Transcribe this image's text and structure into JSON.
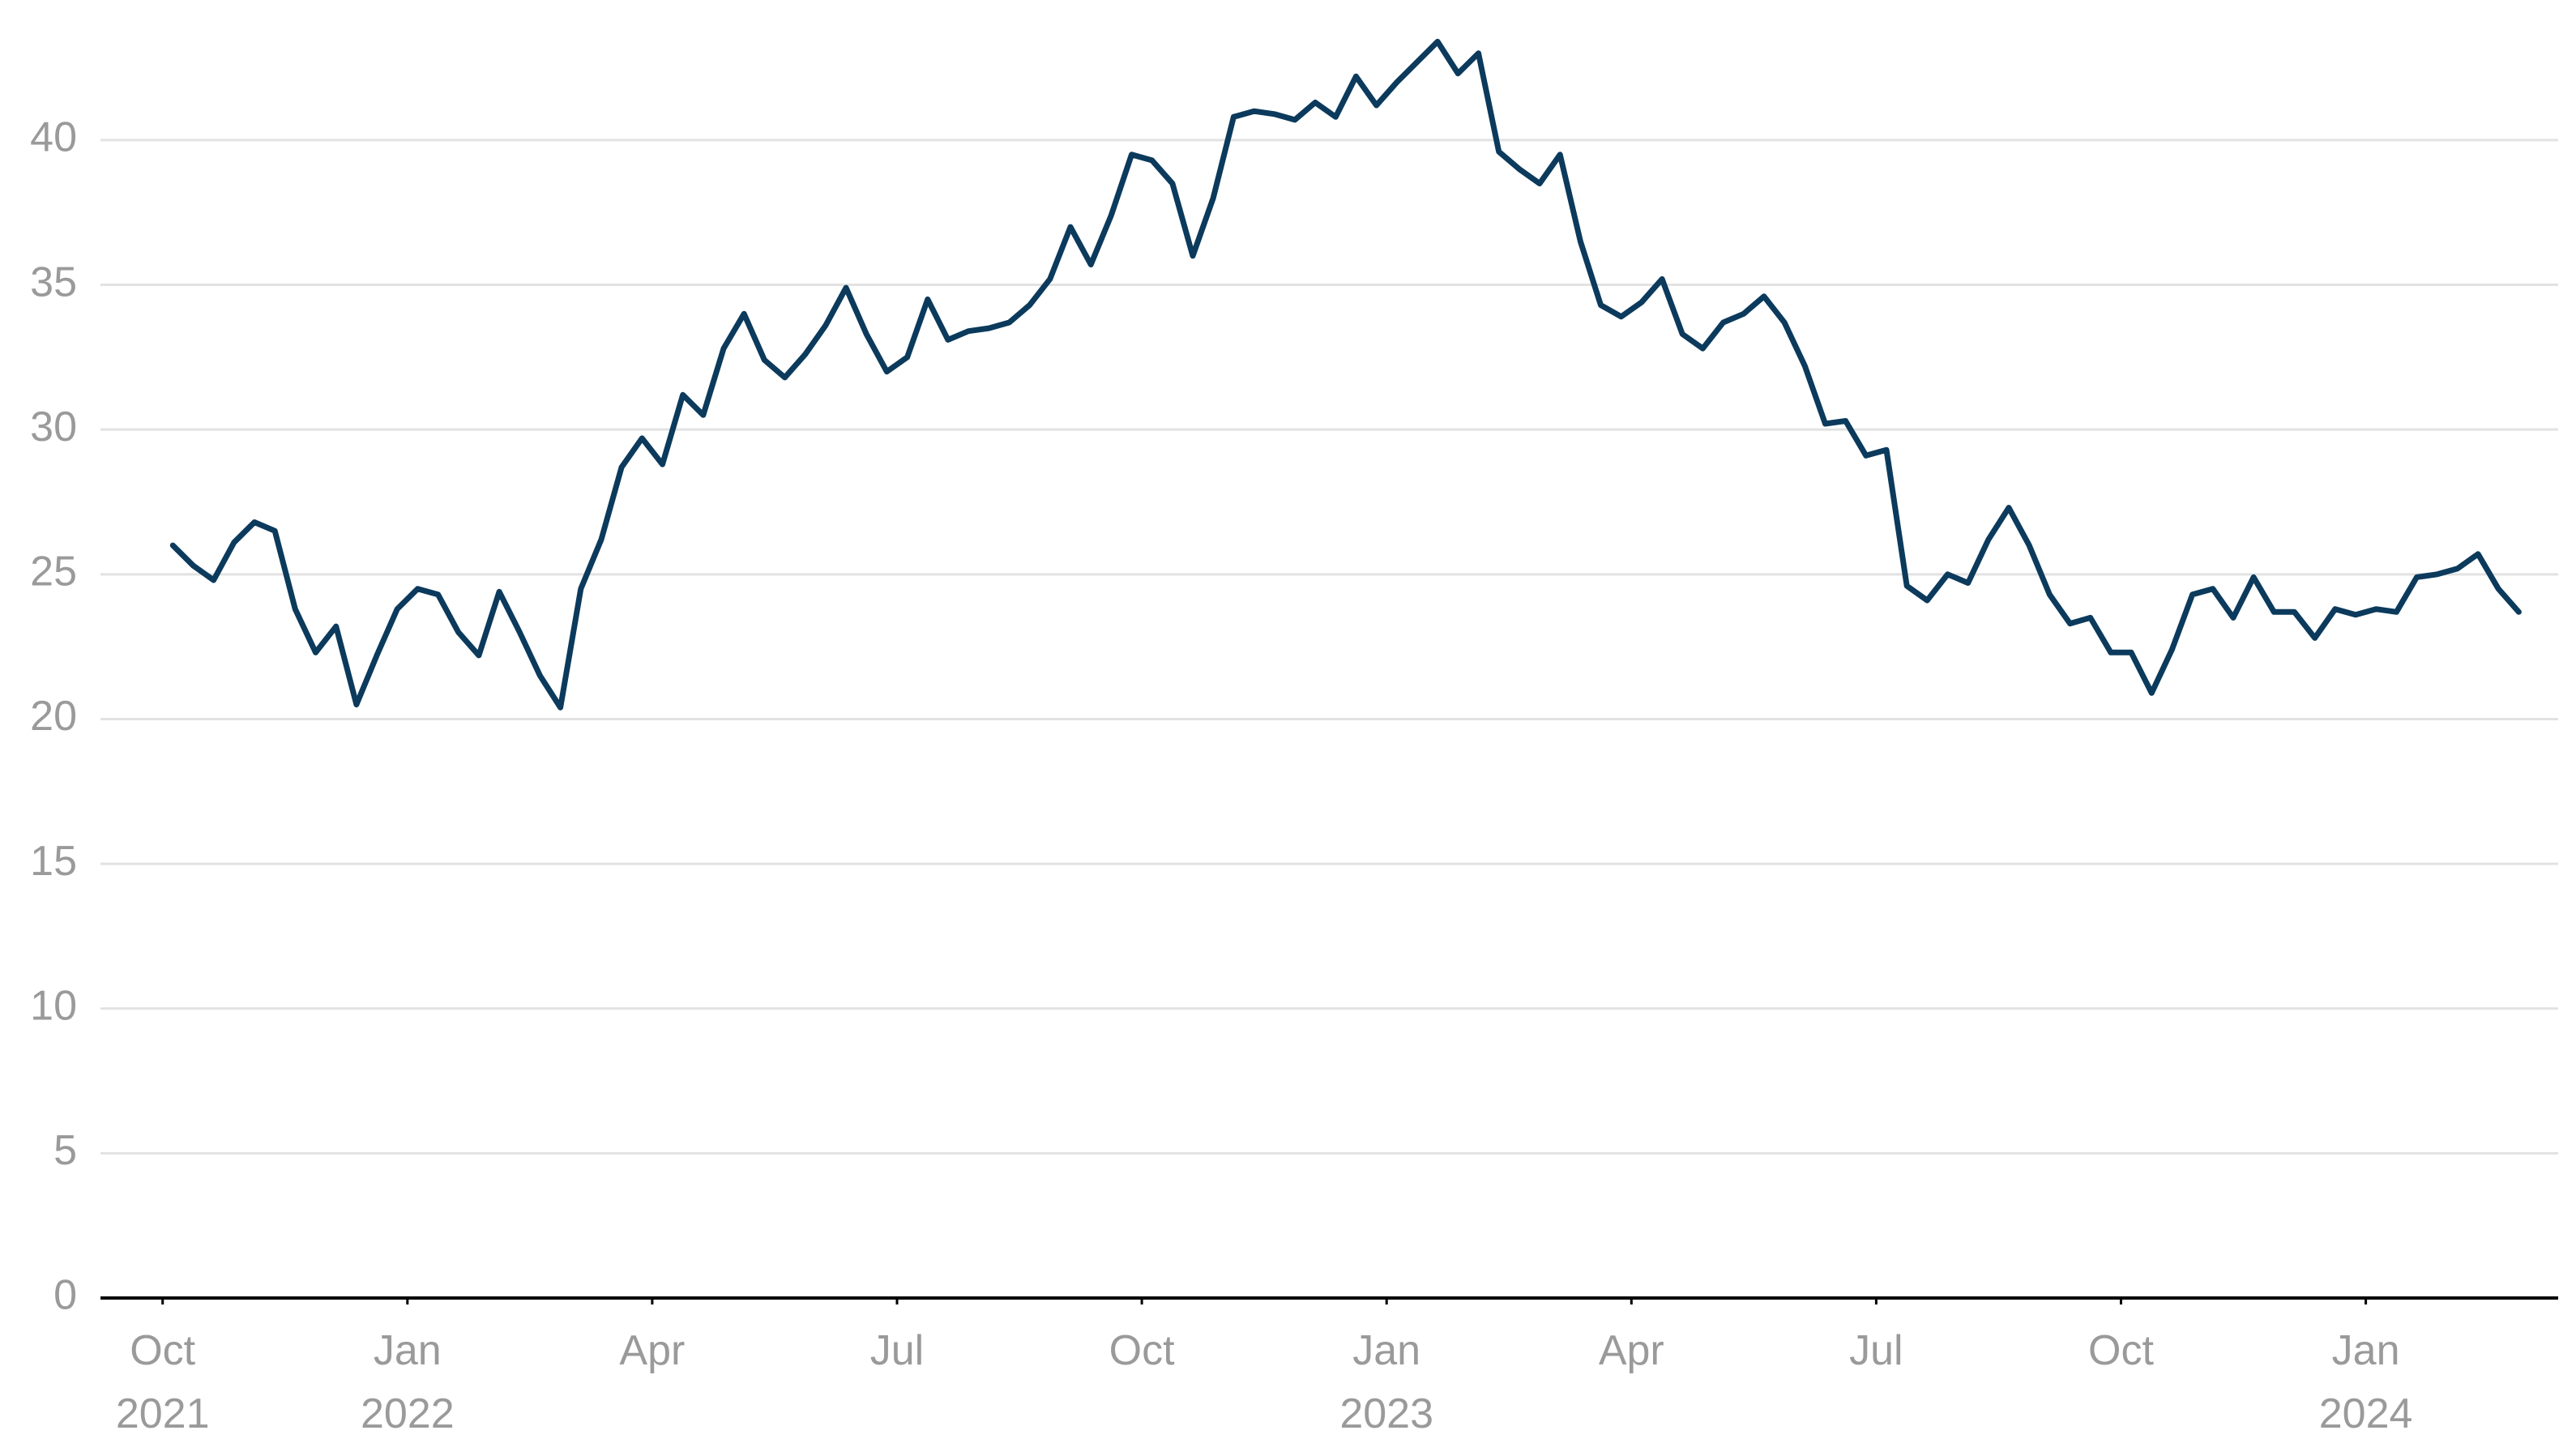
{
  "chart_data": {
    "type": "line",
    "color": "#0b3a5c",
    "grid": true,
    "xlim": [
      "2021-09",
      "2024-03"
    ],
    "xticks": [
      {
        "value": "2021-10",
        "label": "Oct\n2021"
      },
      {
        "value": "2022-01",
        "label": "Jan\n2022"
      },
      {
        "value": "2022-04",
        "label": "Apr"
      },
      {
        "value": "2022-07",
        "label": "Jul"
      },
      {
        "value": "2022-10",
        "label": "Oct"
      },
      {
        "value": "2023-01",
        "label": "Jan\n2023"
      },
      {
        "value": "2023-04",
        "label": "Apr"
      },
      {
        "value": "2023-07",
        "label": "Jul"
      },
      {
        "value": "2023-10",
        "label": "Oct"
      },
      {
        "value": "2024-01",
        "label": "Jan\n2024"
      }
    ],
    "ylim": [
      0,
      44
    ],
    "yticks": [
      0,
      5,
      10,
      15,
      20,
      25,
      30,
      35,
      40
    ],
    "x": [
      "2021-10",
      "2021-10",
      "2021-10",
      "2021-10",
      "2021-11",
      "2021-11",
      "2021-11",
      "2021-11",
      "2021-12",
      "2021-12",
      "2021-12",
      "2021-12",
      "2022-01",
      "2022-01",
      "2022-01",
      "2022-01",
      "2022-02",
      "2022-02",
      "2022-02",
      "2022-02",
      "2022-03",
      "2022-03",
      "2022-03",
      "2022-03",
      "2022-04",
      "2022-04",
      "2022-04",
      "2022-04",
      "2022-05",
      "2022-05",
      "2022-05",
      "2022-05",
      "2022-06",
      "2022-06",
      "2022-06",
      "2022-06",
      "2022-07",
      "2022-07",
      "2022-07",
      "2022-07",
      "2022-08",
      "2022-08",
      "2022-08",
      "2022-08",
      "2022-09",
      "2022-09",
      "2022-09",
      "2022-09",
      "2022-10",
      "2022-10",
      "2022-10",
      "2022-10",
      "2022-11",
      "2022-11",
      "2022-11",
      "2022-11",
      "2022-12",
      "2022-12",
      "2022-12",
      "2022-12",
      "2023-01",
      "2023-01",
      "2023-01",
      "2023-01",
      "2023-02",
      "2023-02",
      "2023-02",
      "2023-02",
      "2023-03",
      "2023-03",
      "2023-03",
      "2023-03",
      "2023-04",
      "2023-04",
      "2023-04",
      "2023-04",
      "2023-05",
      "2023-05",
      "2023-05",
      "2023-05",
      "2023-06",
      "2023-06",
      "2023-06",
      "2023-06",
      "2023-07",
      "2023-07",
      "2023-07",
      "2023-07",
      "2023-08",
      "2023-08",
      "2023-08",
      "2023-08",
      "2023-09",
      "2023-09",
      "2023-09",
      "2023-09",
      "2023-10",
      "2023-10",
      "2023-10",
      "2023-10",
      "2023-11",
      "2023-11",
      "2023-11",
      "2023-11",
      "2023-12",
      "2023-12",
      "2023-12",
      "2023-12",
      "2024-01",
      "2024-01",
      "2024-01",
      "2024-01",
      "2024-02",
      "2024-02",
      "2024-02",
      "2024-02"
    ],
    "values": [
      26,
      25.3,
      24.8,
      26.1,
      26.8,
      26.5,
      23.8,
      22.3,
      23.2,
      20.5,
      22.2,
      23.8,
      24.5,
      24.3,
      23,
      22.2,
      24.4,
      23,
      21.5,
      20.4,
      24.5,
      26.2,
      28.7,
      29.7,
      28.8,
      31.2,
      30.5,
      32.8,
      34,
      32.4,
      31.8,
      32.6,
      33.6,
      34.9,
      33.3,
      32,
      32.5,
      34.5,
      33.1,
      33.4,
      33.5,
      33.7,
      34.3,
      35.2,
      37,
      35.7,
      37.4,
      39.5,
      39.3,
      38.5,
      36,
      38,
      40.8,
      41,
      40.9,
      40.7,
      41.3,
      40.8,
      42.2,
      41.2,
      42,
      42.7,
      43.4,
      42.3,
      43,
      39.6,
      39,
      38.5,
      39.5,
      36.5,
      34.3,
      33.9,
      34.4,
      35.2,
      33.3,
      32.8,
      33.7,
      34,
      34.6,
      33.7,
      32.2,
      30.2,
      30.3,
      29.1,
      29.3,
      24.6,
      24.1,
      25,
      24.7,
      26.2,
      27.3,
      26,
      24.3,
      23.3,
      23.5,
      22.3,
      22.3,
      20.9,
      22.4,
      24.3,
      24.5,
      23.5,
      24.9,
      23.7,
      23.7,
      22.8,
      23.8,
      23.6,
      23.8,
      23.7,
      24.9,
      25,
      25.2,
      25.7,
      24.5,
      23.7
    ]
  }
}
